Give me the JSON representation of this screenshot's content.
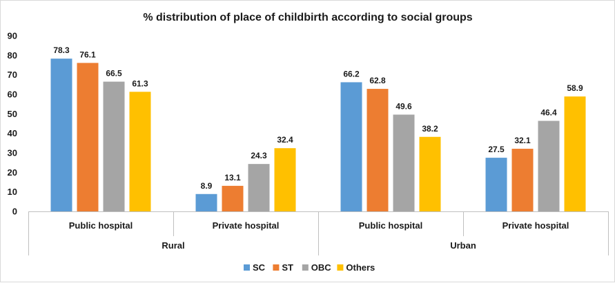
{
  "chart_data": {
    "type": "bar",
    "title": "% distribution of place of childbirth according to social groups",
    "xlabel": "",
    "ylabel": "",
    "ylim": [
      0,
      90
    ],
    "yticks": [
      0,
      10,
      20,
      30,
      40,
      50,
      60,
      70,
      80,
      90
    ],
    "groups": [
      {
        "label": "Rural",
        "categories": [
          "Public hospital",
          "Private hospital"
        ]
      },
      {
        "label": "Urban",
        "categories": [
          "Public hospital",
          "Private hospital"
        ]
      }
    ],
    "series": [
      {
        "name": "SC",
        "color": "#5b9bd5",
        "values": [
          78.3,
          8.9,
          66.2,
          27.5
        ]
      },
      {
        "name": "ST",
        "color": "#ed7d31",
        "values": [
          76.1,
          13.1,
          62.8,
          32.1
        ]
      },
      {
        "name": "OBC",
        "color": "#a5a5a5",
        "values": [
          66.5,
          24.3,
          49.6,
          46.4
        ]
      },
      {
        "name": "Others",
        "color": "#ffc000",
        "values": [
          61.3,
          32.4,
          38.2,
          58.9
        ]
      }
    ],
    "data_labels": true,
    "grid": false,
    "legend_position": "bottom"
  }
}
